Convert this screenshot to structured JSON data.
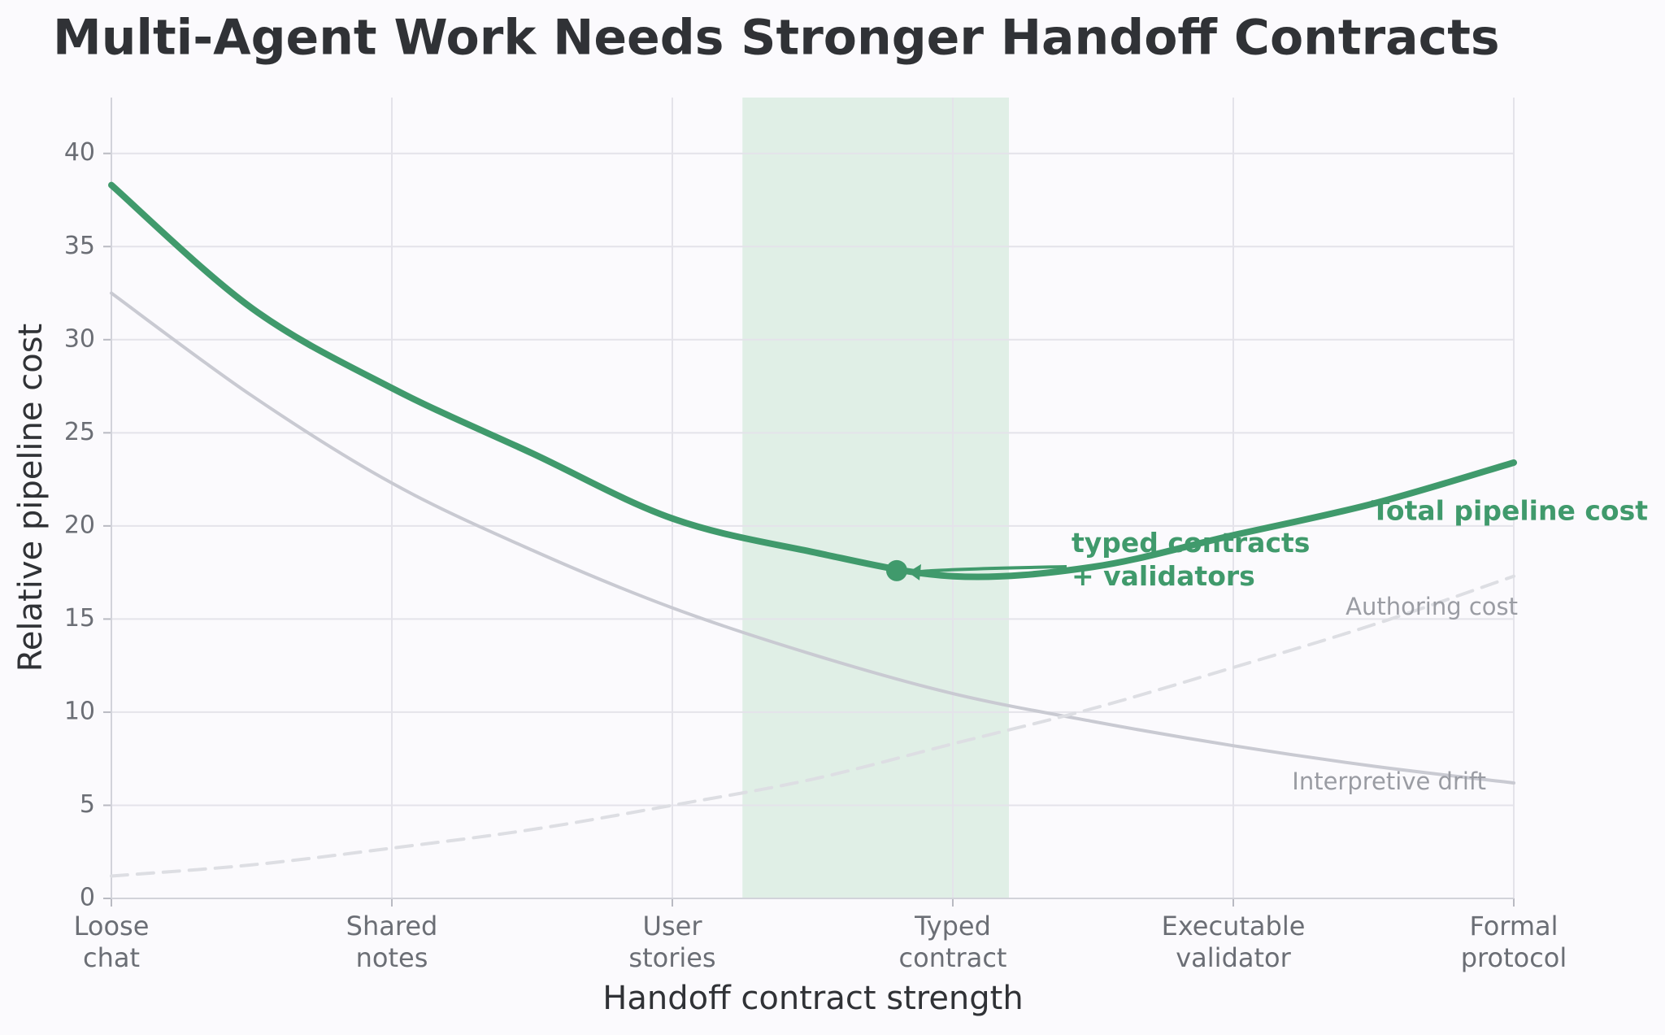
{
  "chart_data": {
    "type": "line",
    "title": "Multi-Agent Work Needs Stronger Handoff Contracts",
    "xlabel": "Handoff contract strength",
    "ylabel": "Relative pipeline cost",
    "x": [
      0,
      0.5,
      1,
      1.5,
      2,
      2.5,
      3,
      3.5,
      4,
      4.5,
      5
    ],
    "series": [
      {
        "name": "Interpretive drift",
        "color": "#c9cad2",
        "dashed": false,
        "values": [
          32.5,
          27.0,
          22.3,
          18.7,
          15.6,
          13.1,
          11.0,
          9.5,
          8.2,
          7.1,
          6.2
        ]
      },
      {
        "name": "Authoring cost",
        "color": "#dddee3",
        "dashed": true,
        "values": [
          1.2,
          1.8,
          2.7,
          3.7,
          5.0,
          6.4,
          8.3,
          10.2,
          12.4,
          14.7,
          17.3
        ]
      },
      {
        "name": "Total pipeline cost",
        "color": "#409a6c",
        "dashed": false,
        "values": [
          38.3,
          31.7,
          27.4,
          23.9,
          20.4,
          18.6,
          17.3,
          17.8,
          19.5,
          21.2,
          23.4
        ]
      }
    ],
    "xlim": [
      0,
      5
    ],
    "ylim": [
      0,
      43
    ],
    "xticks": [
      {
        "value": 0,
        "label": "Loose\nchat"
      },
      {
        "value": 1,
        "label": "Shared\nnotes"
      },
      {
        "value": 2,
        "label": "User\nstories"
      },
      {
        "value": 3,
        "label": "Typed\ncontract"
      },
      {
        "value": 4,
        "label": "Executable\nvalidator"
      },
      {
        "value": 5,
        "label": "Formal\nprotocol"
      }
    ],
    "yticks": [
      0,
      5,
      10,
      15,
      20,
      25,
      30,
      35,
      40
    ],
    "grid": true,
    "highlight": [
      2.25,
      3.2
    ],
    "highlight_color": "#e0efe6",
    "annotation": {
      "text": "typed contracts\n+ validators",
      "x": 2.8,
      "y": 17.6
    }
  }
}
